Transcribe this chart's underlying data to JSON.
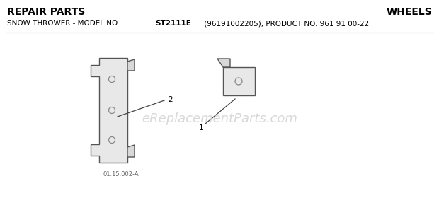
{
  "title_left": "REPAIR PARTS",
  "title_right": "WHEELS",
  "subtitle_normal": "SNOW THROWER - MODEL NO. ",
  "subtitle_bold": "ST2111E",
  "subtitle_rest": " (96191002205), PRODUCT NO. 961 91 00-22",
  "diagram_code": "01.15.002-A",
  "watermark": "eReplacementParts.com",
  "bg_color": "#ffffff",
  "text_color": "#000000",
  "part1_label": "1",
  "part2_label": "2",
  "part_color": "#e8e8e8",
  "part_edge": "#555555",
  "part_edge2": "#888888"
}
